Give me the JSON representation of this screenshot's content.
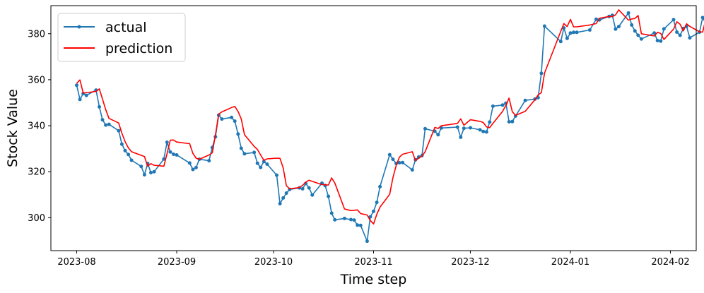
{
  "chart_data": {
    "type": "line",
    "xlabel": "Time step",
    "ylabel": "Stock Value",
    "x_tick_labels": [
      "2023-08",
      "2023-09",
      "2023-10",
      "2023-11",
      "2023-12",
      "2024-01",
      "2024-02"
    ],
    "x_ticks": [
      "2023-08-01",
      "2023-09-01",
      "2023-10-01",
      "2023-11-01",
      "2023-12-01",
      "2024-01-01",
      "2024-02-01"
    ],
    "y_ticks": [
      300,
      320,
      340,
      360,
      380
    ],
    "xlim": [
      "2023-07-24",
      "2024-02-09"
    ],
    "ylim": [
      285.7,
      392.2
    ],
    "grid": false,
    "legend_position": "top-left",
    "series": [
      {
        "name": "actual",
        "color": "#1f77b4",
        "marker": "circle",
        "points": [
          [
            "2023-08-01",
            357.6
          ],
          [
            "2023-08-02",
            351.4
          ],
          [
            "2023-08-03",
            354.0
          ],
          [
            "2023-08-04",
            353.2
          ],
          [
            "2023-08-07",
            355.5
          ],
          [
            "2023-08-08",
            348.2
          ],
          [
            "2023-08-09",
            342.6
          ],
          [
            "2023-08-10",
            340.3
          ],
          [
            "2023-08-11",
            340.6
          ],
          [
            "2023-08-14",
            337.8
          ],
          [
            "2023-08-15",
            332.0
          ],
          [
            "2023-08-16",
            329.2
          ],
          [
            "2023-08-17",
            327.5
          ],
          [
            "2023-08-18",
            325.0
          ],
          [
            "2023-08-21",
            322.3
          ],
          [
            "2023-08-22",
            318.7
          ],
          [
            "2023-08-23",
            323.6
          ],
          [
            "2023-08-24",
            319.6
          ],
          [
            "2023-08-25",
            320.0
          ],
          [
            "2023-08-28",
            325.5
          ],
          [
            "2023-08-29",
            332.8
          ],
          [
            "2023-08-30",
            328.6
          ],
          [
            "2023-08-31",
            327.6
          ],
          [
            "2023-09-01",
            327.3
          ],
          [
            "2023-09-05",
            323.8
          ],
          [
            "2023-09-06",
            321.0
          ],
          [
            "2023-09-07",
            321.8
          ],
          [
            "2023-09-08",
            325.4
          ],
          [
            "2023-09-11",
            324.8
          ],
          [
            "2023-09-12",
            330.5
          ],
          [
            "2023-09-13",
            335.2
          ],
          [
            "2023-09-14",
            344.6
          ],
          [
            "2023-09-15",
            342.9
          ],
          [
            "2023-09-18",
            343.6
          ],
          [
            "2023-09-19",
            342.0
          ],
          [
            "2023-09-20",
            336.4
          ],
          [
            "2023-09-21",
            330.2
          ],
          [
            "2023-09-22",
            327.8
          ],
          [
            "2023-09-25",
            328.4
          ],
          [
            "2023-09-26",
            323.7
          ],
          [
            "2023-09-27",
            321.9
          ],
          [
            "2023-09-28",
            324.4
          ],
          [
            "2023-09-29",
            323.3
          ],
          [
            "2023-10-02",
            318.5
          ],
          [
            "2023-10-03",
            306.1
          ],
          [
            "2023-10-04",
            308.6
          ],
          [
            "2023-10-05",
            310.7
          ],
          [
            "2023-10-06",
            312.3
          ],
          [
            "2023-10-09",
            313.0
          ],
          [
            "2023-10-10",
            312.6
          ],
          [
            "2023-10-11",
            314.9
          ],
          [
            "2023-10-12",
            313.0
          ],
          [
            "2023-10-13",
            309.9
          ],
          [
            "2023-10-16",
            315.0
          ],
          [
            "2023-10-17",
            314.0
          ],
          [
            "2023-10-18",
            309.3
          ],
          [
            "2023-10-19",
            302.0
          ],
          [
            "2023-10-20",
            299.1
          ],
          [
            "2023-10-23",
            299.7
          ],
          [
            "2023-10-25",
            299.2
          ],
          [
            "2023-10-26",
            299.0
          ],
          [
            "2023-10-27",
            296.8
          ],
          [
            "2023-10-28",
            296.7
          ],
          [
            "2023-10-30",
            289.8
          ],
          [
            "2023-10-31",
            300.4
          ],
          [
            "2023-11-01",
            302.8
          ],
          [
            "2023-11-02",
            306.7
          ],
          [
            "2023-11-03",
            313.5
          ],
          [
            "2023-11-06",
            327.4
          ],
          [
            "2023-11-07",
            325.4
          ],
          [
            "2023-11-08",
            323.6
          ],
          [
            "2023-11-09",
            323.9
          ],
          [
            "2023-11-10",
            324.0
          ],
          [
            "2023-11-13",
            320.8
          ],
          [
            "2023-11-14",
            325.2
          ],
          [
            "2023-11-15",
            326.4
          ],
          [
            "2023-11-16",
            327.0
          ],
          [
            "2023-11-17",
            338.7
          ],
          [
            "2023-11-20",
            337.6
          ],
          [
            "2023-11-21",
            336.1
          ],
          [
            "2023-11-22",
            339.0
          ],
          [
            "2023-11-27",
            339.4
          ],
          [
            "2023-11-28",
            335.0
          ],
          [
            "2023-11-29",
            338.9
          ],
          [
            "2023-12-01",
            339.1
          ],
          [
            "2023-12-04",
            338.2
          ],
          [
            "2023-12-05",
            337.5
          ],
          [
            "2023-12-06",
            337.3
          ],
          [
            "2023-12-07",
            341.6
          ],
          [
            "2023-12-08",
            348.5
          ],
          [
            "2023-12-11",
            349.0
          ],
          [
            "2023-12-12",
            349.8
          ],
          [
            "2023-12-13",
            341.7
          ],
          [
            "2023-12-14",
            341.8
          ],
          [
            "2023-12-15",
            344.2
          ],
          [
            "2023-12-18",
            351.0
          ],
          [
            "2023-12-21",
            351.6
          ],
          [
            "2023-12-22",
            352.2
          ],
          [
            "2023-12-23",
            362.8
          ],
          [
            "2023-12-24",
            383.3
          ],
          [
            "2023-12-29",
            376.6
          ],
          [
            "2023-12-30",
            382.5
          ],
          [
            "2023-12-31",
            378.0
          ],
          [
            "2024-01-01",
            380.3
          ],
          [
            "2024-01-02",
            380.6
          ],
          [
            "2024-01-03",
            380.6
          ],
          [
            "2024-01-07",
            381.6
          ],
          [
            "2024-01-09",
            386.3
          ],
          [
            "2024-01-10",
            386.0
          ],
          [
            "2024-01-13",
            387.5
          ],
          [
            "2024-01-14",
            388.0
          ],
          [
            "2024-01-15",
            382.0
          ],
          [
            "2024-01-16",
            383.1
          ],
          [
            "2024-01-19",
            389.0
          ],
          [
            "2024-01-20",
            383.8
          ],
          [
            "2024-01-21",
            381.2
          ],
          [
            "2024-01-22",
            379.3
          ],
          [
            "2024-01-23",
            377.7
          ],
          [
            "2024-01-27",
            380.3
          ],
          [
            "2024-01-28",
            377.0
          ],
          [
            "2024-01-29",
            376.8
          ],
          [
            "2024-01-30",
            382.1
          ],
          [
            "2024-02-02",
            386.1
          ],
          [
            "2024-02-03",
            380.7
          ],
          [
            "2024-02-04",
            379.3
          ],
          [
            "2024-02-05",
            382.3
          ],
          [
            "2024-02-06",
            383.2
          ],
          [
            "2024-02-07",
            378.2
          ],
          [
            "2024-02-10",
            380.7
          ],
          [
            "2024-02-11",
            387.0
          ],
          [
            "2024-02-12",
            384.3
          ]
        ]
      },
      {
        "name": "prediction",
        "color": "#ff0000",
        "marker": "none",
        "points": [
          [
            "2023-08-01",
            358.4
          ],
          [
            "2023-08-02",
            359.9
          ],
          [
            "2023-08-03",
            354.2
          ],
          [
            "2023-08-07",
            354.9
          ],
          [
            "2023-08-08",
            356.0
          ],
          [
            "2023-08-09",
            351.6
          ],
          [
            "2023-08-10",
            347.0
          ],
          [
            "2023-08-11",
            343.2
          ],
          [
            "2023-08-14",
            341.2
          ],
          [
            "2023-08-15",
            336.8
          ],
          [
            "2023-08-16",
            333.1
          ],
          [
            "2023-08-17",
            330.4
          ],
          [
            "2023-08-18",
            328.7
          ],
          [
            "2023-08-22",
            326.6
          ],
          [
            "2023-08-23",
            322.4
          ],
          [
            "2023-08-24",
            323.5
          ],
          [
            "2023-08-25",
            322.8
          ],
          [
            "2023-08-28",
            322.4
          ],
          [
            "2023-08-29",
            327.8
          ],
          [
            "2023-08-30",
            333.7
          ],
          [
            "2023-08-31",
            333.8
          ],
          [
            "2023-09-01",
            332.9
          ],
          [
            "2023-09-05",
            332.2
          ],
          [
            "2023-09-06",
            328.0
          ],
          [
            "2023-09-07",
            325.9
          ],
          [
            "2023-09-08",
            325.4
          ],
          [
            "2023-09-11",
            327.3
          ],
          [
            "2023-09-12",
            328.2
          ],
          [
            "2023-09-13",
            336.0
          ],
          [
            "2023-09-14",
            345.1
          ],
          [
            "2023-09-15",
            346.0
          ],
          [
            "2023-09-18",
            347.9
          ],
          [
            "2023-09-19",
            348.4
          ],
          [
            "2023-09-20",
            346.2
          ],
          [
            "2023-09-21",
            343.0
          ],
          [
            "2023-09-22",
            336.1
          ],
          [
            "2023-09-25",
            331.0
          ],
          [
            "2023-09-26",
            329.7
          ],
          [
            "2023-09-27",
            327.3
          ],
          [
            "2023-09-28",
            325.0
          ],
          [
            "2023-09-29",
            325.6
          ],
          [
            "2023-10-02",
            325.9
          ],
          [
            "2023-10-03",
            325.8
          ],
          [
            "2023-10-04",
            321.6
          ],
          [
            "2023-10-05",
            313.9
          ],
          [
            "2023-10-06",
            312.6
          ],
          [
            "2023-10-09",
            313.1
          ],
          [
            "2023-10-10",
            314.1
          ],
          [
            "2023-10-11",
            315.5
          ],
          [
            "2023-10-12",
            316.3
          ],
          [
            "2023-10-13",
            315.8
          ],
          [
            "2023-10-16",
            314.4
          ],
          [
            "2023-10-18",
            314.2
          ],
          [
            "2023-10-19",
            317.3
          ],
          [
            "2023-10-20",
            315.1
          ],
          [
            "2023-10-23",
            303.8
          ],
          [
            "2023-10-25",
            303.1
          ],
          [
            "2023-10-27",
            303.4
          ],
          [
            "2023-10-28",
            301.8
          ],
          [
            "2023-10-30",
            301.2
          ],
          [
            "2023-10-31",
            298.8
          ],
          [
            "2023-11-01",
            297.3
          ],
          [
            "2023-11-02",
            301.5
          ],
          [
            "2023-11-03",
            304.6
          ],
          [
            "2023-11-06",
            310.2
          ],
          [
            "2023-11-07",
            317.4
          ],
          [
            "2023-11-08",
            322.7
          ],
          [
            "2023-11-09",
            326.3
          ],
          [
            "2023-11-10",
            327.6
          ],
          [
            "2023-11-13",
            328.7
          ],
          [
            "2023-11-14",
            324.8
          ],
          [
            "2023-11-15",
            325.9
          ],
          [
            "2023-11-16",
            326.8
          ],
          [
            "2023-11-17",
            328.7
          ],
          [
            "2023-11-20",
            339.3
          ],
          [
            "2023-11-21",
            338.8
          ],
          [
            "2023-11-22",
            340.0
          ],
          [
            "2023-11-27",
            341.0
          ],
          [
            "2023-11-28",
            343.0
          ],
          [
            "2023-11-29",
            340.2
          ],
          [
            "2023-12-01",
            342.6
          ],
          [
            "2023-12-04",
            341.9
          ],
          [
            "2023-12-05",
            341.4
          ],
          [
            "2023-12-06",
            339.5
          ],
          [
            "2023-12-07",
            339.2
          ],
          [
            "2023-12-08",
            341.0
          ],
          [
            "2023-12-11",
            346.3
          ],
          [
            "2023-12-12",
            348.8
          ],
          [
            "2023-12-13",
            352.0
          ],
          [
            "2023-12-14",
            346.1
          ],
          [
            "2023-12-15",
            344.5
          ],
          [
            "2023-12-18",
            346.3
          ],
          [
            "2023-12-21",
            351.3
          ],
          [
            "2023-12-22",
            353.4
          ],
          [
            "2023-12-23",
            354.4
          ],
          [
            "2023-12-24",
            362.9
          ],
          [
            "2023-12-29",
            381.0
          ],
          [
            "2023-12-30",
            384.4
          ],
          [
            "2023-12-31",
            383.1
          ],
          [
            "2024-01-01",
            386.2
          ],
          [
            "2024-01-02",
            383.0
          ],
          [
            "2024-01-03",
            383.0
          ],
          [
            "2024-01-07",
            383.8
          ],
          [
            "2024-01-09",
            384.4
          ],
          [
            "2024-01-10",
            386.7
          ],
          [
            "2024-01-13",
            387.5
          ],
          [
            "2024-01-14",
            387.4
          ],
          [
            "2024-01-15",
            388.2
          ],
          [
            "2024-01-16",
            390.4
          ],
          [
            "2024-01-19",
            385.9
          ],
          [
            "2024-01-20",
            386.4
          ],
          [
            "2024-01-21",
            386.6
          ],
          [
            "2024-01-22",
            387.9
          ],
          [
            "2024-01-23",
            380.0
          ],
          [
            "2024-01-27",
            379.0
          ],
          [
            "2024-01-28",
            380.6
          ],
          [
            "2024-01-29",
            380.1
          ],
          [
            "2024-01-30",
            377.5
          ],
          [
            "2024-02-02",
            382.0
          ],
          [
            "2024-02-03",
            385.2
          ],
          [
            "2024-02-04",
            384.1
          ],
          [
            "2024-02-05",
            381.2
          ],
          [
            "2024-02-06",
            384.3
          ],
          [
            "2024-02-07",
            383.2
          ],
          [
            "2024-02-10",
            380.8
          ],
          [
            "2024-02-11",
            380.7
          ],
          [
            "2024-02-12",
            386.5
          ]
        ]
      }
    ]
  }
}
